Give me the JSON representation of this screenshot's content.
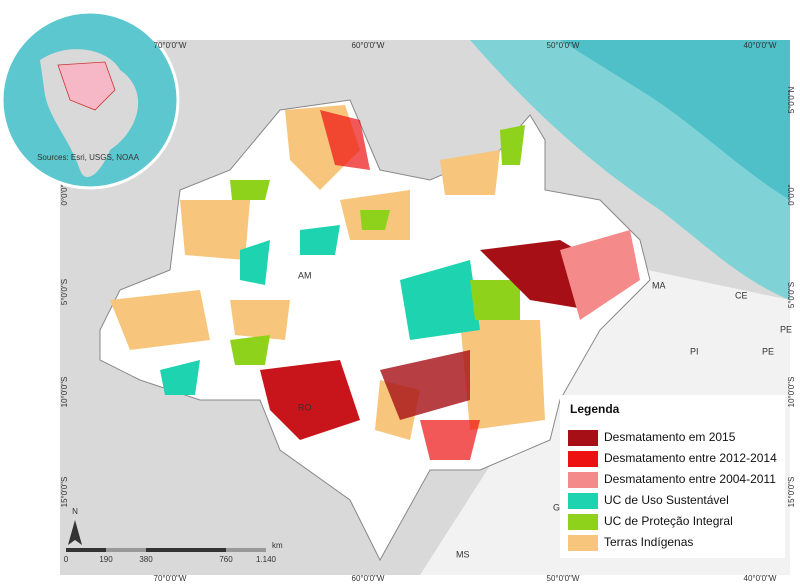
{
  "map": {
    "top_labels": [
      "70°0'0\"W",
      "60°0'0\"W",
      "50°0'0\"W",
      "40°0'0\"W"
    ],
    "bottom_labels": [
      "70°0'0\"W",
      "60°0'0\"W",
      "50°0'0\"W",
      "40°0'0\"W"
    ],
    "left_labels": [
      "0°0'0\"",
      "5°0'0\"S",
      "10°0'0\"S",
      "15°0'0\"S"
    ],
    "right_labels": [
      "5°0'0\"N",
      "0°0'0\"",
      "5°0'0\"S",
      "10°0'0\"S",
      "15°0'0\"S"
    ],
    "inset_source": "Sources: Esri, USGS, NOAA",
    "states": [
      "AM",
      "MA",
      "CE",
      "PI",
      "PE",
      "PE",
      "RO",
      "MS",
      "G"
    ],
    "north": "N",
    "scale": {
      "labels": [
        "0",
        "190",
        "380",
        "760",
        "1.140"
      ],
      "unit": "km"
    },
    "legend": {
      "title": "Legenda",
      "items": [
        {
          "label": "Desmatamento em 2015",
          "color": "#a50f15"
        },
        {
          "label": "Desmatamento entre 2012-2014",
          "color": "#ee1111"
        },
        {
          "label": "Desmatamento entre 2004-2011",
          "color": "#f48a8a"
        },
        {
          "label": "UC de Uso Sustentável",
          "color": "#1dd3b0"
        },
        {
          "label": "UC de Proteção Integral",
          "color": "#8ed21b"
        },
        {
          "label": "Terras Indígenas",
          "color": "#f7c57c"
        }
      ]
    }
  }
}
